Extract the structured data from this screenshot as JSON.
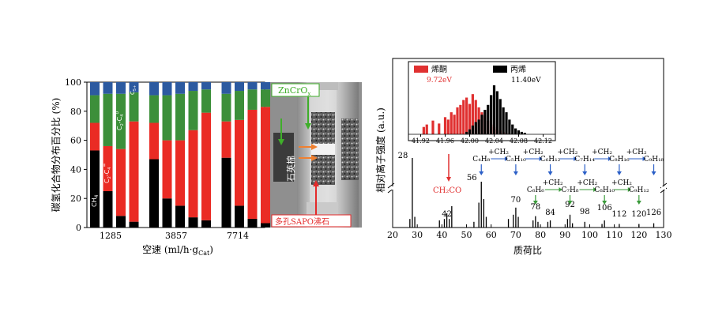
{
  "chart_data": [
    {
      "type": "bar",
      "subtype": "stacked-100",
      "ylabel": "碳氢化合物分布百分比 (%)",
      "xlabel": "空速 (ml/h·g",
      "xlabel_sub": "Cat",
      "xlabel_close": ")",
      "ylim": [
        0,
        100
      ],
      "yticks": [
        0,
        20,
        40,
        60,
        80,
        100
      ],
      "groups": [
        "1285",
        "3857",
        "7714"
      ],
      "segment_colors": {
        "CH4": "#000000",
        "C2-C4=": "#ea2b24",
        "C2-C4o": "#3c8f3a",
        "C5+": "#2c5aa0"
      },
      "segment_labels": {
        "CH4_main": "CH",
        "CH4_sub": "4",
        "C2C4eq_main": "C",
        "C2C4eq_s1": "2",
        "C2C4eq_mid": "-C",
        "C2C4eq_s2": "4",
        "C2C4eq_sup": "=",
        "C2C4o_main": "C",
        "C2C4o_s1": "2",
        "C2C4o_mid": "-C",
        "C2C4o_s2": "4",
        "C2C4o_sup": "o",
        "C5_main": "C",
        "C5_sub": "5+"
      },
      "series": [
        {
          "name": "CH4",
          "values": [
            53,
            25,
            8,
            4,
            47,
            20,
            15,
            7,
            5,
            48,
            15,
            6,
            3
          ]
        },
        {
          "name": "C2-C4=",
          "values": [
            19,
            31,
            46,
            69,
            25,
            40,
            45,
            60,
            74,
            25,
            59,
            75,
            80
          ]
        },
        {
          "name": "C2-C4o",
          "values": [
            19,
            36,
            38,
            20,
            19,
            31,
            32,
            27,
            16,
            19,
            20,
            14,
            12
          ]
        },
        {
          "name": "C5+",
          "values": [
            9,
            8,
            8,
            7,
            9,
            9,
            8,
            6,
            5,
            8,
            6,
            5,
            5
          ]
        }
      ],
      "bar_groups": [
        [
          0,
          1,
          2,
          3
        ],
        [
          4,
          5,
          6,
          7,
          8
        ],
        [
          9,
          10,
          11,
          12
        ]
      ]
    },
    {
      "type": "photo-annotation",
      "labels": {
        "zncrox_main": "ZnCrO",
        "zncrox_sub": "x",
        "quartz": "石英棉",
        "sapo": "多孔SAPO沸石"
      },
      "colors": {
        "green": "#3fae2a",
        "orange": "#f08030",
        "red": "#e42a2a",
        "frame": "#c8c8c8"
      }
    },
    {
      "type": "bar",
      "subtype": "mass-spectrum",
      "xlabel": "质荷比",
      "ylabel": "相对离子强度 (a.u.)",
      "xlim": [
        20,
        130
      ],
      "xticks": [
        20,
        30,
        40,
        50,
        60,
        70,
        80,
        90,
        100,
        110,
        120,
        130
      ],
      "peak_labels": [
        {
          "text": "28",
          "x": 28
        },
        {
          "text": "42",
          "x": 42
        },
        {
          "text": "56",
          "x": 56
        },
        {
          "text": "70",
          "x": 70
        },
        {
          "text": "78",
          "x": 78
        },
        {
          "text": "84",
          "x": 84
        },
        {
          "text": "92",
          "x": 92
        },
        {
          "text": "98",
          "x": 98
        },
        {
          "text": "106",
          "x": 106
        },
        {
          "text": "112",
          "x": 112
        },
        {
          "text": "120",
          "x": 120
        },
        {
          "text": "126",
          "x": 126
        }
      ],
      "peaks": [
        {
          "x": 27,
          "y": 0.12
        },
        {
          "x": 28,
          "y": 1.0
        },
        {
          "x": 29,
          "y": 0.15
        },
        {
          "x": 39,
          "y": 0.1
        },
        {
          "x": 41,
          "y": 0.12
        },
        {
          "x": 42,
          "y": 0.2
        },
        {
          "x": 43,
          "y": 0.12
        },
        {
          "x": 44,
          "y": 0.3
        },
        {
          "x": 53,
          "y": 0.08
        },
        {
          "x": 55,
          "y": 0.35
        },
        {
          "x": 56,
          "y": 0.9
        },
        {
          "x": 57,
          "y": 0.4
        },
        {
          "x": 58,
          "y": 0.15
        },
        {
          "x": 67,
          "y": 0.12
        },
        {
          "x": 69,
          "y": 0.18
        },
        {
          "x": 70,
          "y": 0.28
        },
        {
          "x": 71,
          "y": 0.15
        },
        {
          "x": 77,
          "y": 0.1
        },
        {
          "x": 78,
          "y": 0.16
        },
        {
          "x": 79,
          "y": 0.08
        },
        {
          "x": 83,
          "y": 0.08
        },
        {
          "x": 84,
          "y": 0.1
        },
        {
          "x": 91,
          "y": 0.12
        },
        {
          "x": 92,
          "y": 0.18
        },
        {
          "x": 93,
          "y": 0.06
        },
        {
          "x": 98,
          "y": 0.08
        },
        {
          "x": 105,
          "y": 0.05
        },
        {
          "x": 106,
          "y": 0.1
        },
        {
          "x": 112,
          "y": 0.05
        },
        {
          "x": 120,
          "y": 0.05
        },
        {
          "x": 126,
          "y": 0.06
        }
      ],
      "annotations": {
        "ch2co": "CH₂CO",
        "plus_ch2": "+CH₂",
        "blue_series": [
          {
            "text": "C₄H₈",
            "x": 56
          },
          {
            "text": "C₅H₁₀",
            "x": 70
          },
          {
            "text": "C₆H₁₂",
            "x": 84
          },
          {
            "text": "C₇H₁₄",
            "x": 98
          },
          {
            "text": "C₈H₁₆",
            "x": 112
          },
          {
            "text": "C₉H₁₈",
            "x": 126
          }
        ],
        "green_series": [
          {
            "text": "C₆H₆",
            "x": 78
          },
          {
            "text": "C₇H₈",
            "x": 92
          },
          {
            "text": "C₈H₁₀",
            "x": 106
          },
          {
            "text": "C₉H₁₂",
            "x": 120
          }
        ]
      },
      "colors": {
        "blue": "#2b5fc7",
        "green": "#3a9a3a",
        "red": "#e03030"
      }
    },
    {
      "type": "bar",
      "subtype": "inset-spectrum",
      "xticks": [
        "41.92",
        "41.96",
        "42.00",
        "42.04",
        "42.08",
        "42.12"
      ],
      "xlim": [
        41.9,
        42.14
      ],
      "legend": [
        {
          "name": "烯酮",
          "color": "#e03030",
          "value": "9.72eV"
        },
        {
          "name": "丙烯",
          "color": "#000000",
          "value": "11.40eV"
        }
      ],
      "series": [
        {
          "name": "烯酮",
          "x": [
            41.925,
            41.93,
            41.94,
            41.95,
            41.96,
            41.965,
            41.97,
            41.975,
            41.98,
            41.985,
            41.99,
            41.995,
            42.0,
            42.005,
            42.01,
            42.015,
            42.02,
            42.025,
            42.03,
            42.035,
            42.04,
            42.045,
            42.05,
            42.055,
            42.06
          ],
          "y": [
            0.15,
            0.2,
            0.28,
            0.22,
            0.35,
            0.3,
            0.45,
            0.4,
            0.55,
            0.6,
            0.7,
            0.75,
            0.62,
            0.82,
            0.7,
            0.55,
            0.45,
            0.38,
            0.28,
            0.2,
            0.15,
            0.1,
            0.08,
            0.05,
            0.03
          ]
        },
        {
          "name": "丙烯",
          "x": [
            41.995,
            42.0,
            42.005,
            42.01,
            42.015,
            42.02,
            42.025,
            42.03,
            42.035,
            42.04,
            42.045,
            42.05,
            42.055,
            42.06,
            42.065,
            42.07,
            42.075,
            42.08,
            42.085,
            42.09
          ],
          "y": [
            0.05,
            0.1,
            0.18,
            0.25,
            0.3,
            0.4,
            0.5,
            0.6,
            0.8,
            1.0,
            0.88,
            0.72,
            0.55,
            0.45,
            0.3,
            0.2,
            0.12,
            0.08,
            0.05,
            0.03
          ]
        }
      ]
    }
  ]
}
